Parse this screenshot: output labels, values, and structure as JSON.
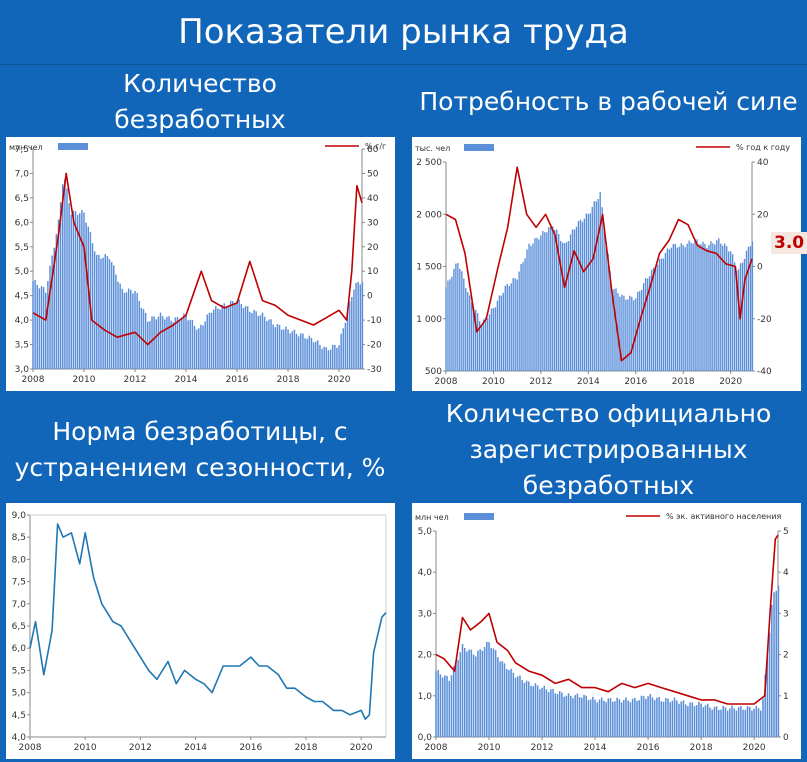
{
  "page": {
    "title": "Показатели рынка труда",
    "panels": [
      {
        "title_lines": [
          "Количество",
          "безработных"
        ]
      },
      {
        "title_lines": [
          "Потребность в рабочей силе"
        ]
      },
      {
        "title_lines": [
          "Норма безработицы, с",
          "устранением сезонности, %"
        ]
      },
      {
        "title_lines": [
          "Количество официально",
          "зарегистрированных",
          "безработных"
        ]
      }
    ],
    "annotation": "3.0"
  },
  "colors": {
    "bar": "#5b8fd9",
    "line_red": "#c00000",
    "line_blue": "#1f77b4",
    "axis": "#888888",
    "text": "#333333"
  },
  "chart_data": [
    {
      "type": "bar+line",
      "legend": {
        "bar_label": "млн чел",
        "line_label": "% г/г"
      },
      "x_ticks": [
        "2008",
        "2010",
        "2012",
        "2014",
        "2016",
        "2018",
        "2020"
      ],
      "x_range": [
        2008,
        2020.9
      ],
      "y_left": {
        "range": [
          3.0,
          7.5
        ],
        "ticks": [
          "3,0",
          "3,5",
          "4,0",
          "4,5",
          "5,0",
          "5,5",
          "6,0",
          "6,5",
          "7,0",
          "7,5"
        ]
      },
      "y_right": {
        "range": [
          -30,
          60
        ],
        "ticks": [
          "-30",
          "-20",
          "-10",
          "0",
          "10",
          "20",
          "30",
          "40",
          "50",
          "60"
        ]
      },
      "bars": {
        "x": [
          2008.0,
          2008.5,
          2009.0,
          2009.2,
          2009.5,
          2010.0,
          2010.5,
          2011.0,
          2011.5,
          2012.0,
          2012.5,
          2013.0,
          2013.5,
          2014.0,
          2014.5,
          2015.0,
          2015.5,
          2016.0,
          2016.5,
          2017.0,
          2017.5,
          2018.0,
          2018.5,
          2019.0,
          2019.5,
          2020.0,
          2020.3,
          2020.6,
          2020.9
        ],
        "y": [
          4.8,
          4.6,
          6.0,
          7.0,
          6.2,
          6.2,
          5.3,
          5.3,
          4.6,
          4.6,
          4.0,
          4.1,
          4.0,
          4.1,
          3.8,
          4.2,
          4.3,
          4.4,
          4.2,
          4.1,
          3.9,
          3.8,
          3.7,
          3.6,
          3.4,
          3.5,
          4.1,
          4.7,
          4.8
        ]
      },
      "line": {
        "x": [
          2008.0,
          2008.5,
          2009.0,
          2009.3,
          2009.6,
          2010.0,
          2010.3,
          2010.8,
          2011.3,
          2012.0,
          2012.5,
          2013.0,
          2013.5,
          2014.0,
          2014.6,
          2015.0,
          2015.5,
          2016.0,
          2016.5,
          2017.0,
          2017.5,
          2018.0,
          2018.5,
          2019.0,
          2019.5,
          2020.0,
          2020.3,
          2020.5,
          2020.7,
          2020.9
        ],
        "y": [
          -7,
          -10,
          25,
          50,
          30,
          20,
          -10,
          -14,
          -17,
          -15,
          -20,
          -15,
          -12,
          -8,
          10,
          -2,
          -5,
          -3,
          14,
          -2,
          -4,
          -8,
          -10,
          -12,
          -9,
          -6,
          -10,
          10,
          45,
          38
        ]
      }
    },
    {
      "type": "bar+line",
      "legend": {
        "bar_label": "тыс. чел",
        "line_label": "% год к году"
      },
      "x_ticks": [
        "2008",
        "2010",
        "2012",
        "2014",
        "2016",
        "2018",
        "2020"
      ],
      "x_range": [
        2008,
        2020.9
      ],
      "y_left": {
        "range": [
          500,
          2500
        ],
        "ticks": [
          "500",
          "1 000",
          "1 500",
          "2 000",
          "2 500"
        ]
      },
      "y_right": {
        "range": [
          -40,
          40
        ],
        "ticks": [
          "-40",
          "-20",
          "0",
          "20",
          "40"
        ]
      },
      "bars": {
        "x": [
          2008.0,
          2008.5,
          2009.0,
          2009.5,
          2010.0,
          2010.5,
          2011.0,
          2011.5,
          2012.0,
          2012.5,
          2013.0,
          2013.5,
          2014.0,
          2014.5,
          2015.0,
          2015.5,
          2016.0,
          2016.5,
          2017.0,
          2017.5,
          2018.0,
          2018.5,
          2019.0,
          2019.5,
          2020.0,
          2020.3,
          2020.6,
          2020.9
        ],
        "y": [
          1300,
          1550,
          1200,
          950,
          1100,
          1300,
          1400,
          1700,
          1800,
          1900,
          1700,
          1900,
          2000,
          2200,
          1300,
          1200,
          1200,
          1400,
          1550,
          1700,
          1700,
          1750,
          1700,
          1750,
          1650,
          1450,
          1600,
          1750
        ]
      },
      "line": {
        "x": [
          2008.0,
          2008.4,
          2008.8,
          2009.3,
          2009.7,
          2010.2,
          2010.6,
          2011.0,
          2011.4,
          2011.8,
          2012.2,
          2012.6,
          2013.0,
          2013.4,
          2013.8,
          2014.2,
          2014.6,
          2015.0,
          2015.4,
          2015.8,
          2016.2,
          2016.6,
          2017.0,
          2017.4,
          2017.8,
          2018.2,
          2018.6,
          2019.0,
          2019.4,
          2019.8,
          2020.2,
          2020.4,
          2020.6,
          2020.9
        ],
        "y": [
          20,
          18,
          5,
          -25,
          -20,
          0,
          15,
          38,
          20,
          15,
          20,
          12,
          -8,
          6,
          -2,
          3,
          20,
          -10,
          -36,
          -33,
          -20,
          -8,
          5,
          10,
          18,
          16,
          8,
          6,
          5,
          1,
          0,
          -20,
          -5,
          3
        ]
      }
    },
    {
      "type": "line",
      "x_ticks": [
        "2008",
        "2010",
        "2012",
        "2014",
        "2016",
        "2018",
        "2020"
      ],
      "x_range": [
        2008,
        2020.9
      ],
      "y_left": {
        "range": [
          4.0,
          9.0
        ],
        "ticks": [
          "4,0",
          "4,5",
          "5,0",
          "5,5",
          "6,0",
          "6,5",
          "7,0",
          "7,5",
          "8,0",
          "8,5",
          "9,0"
        ]
      },
      "line": {
        "x": [
          2008.0,
          2008.2,
          2008.5,
          2008.8,
          2009.0,
          2009.2,
          2009.5,
          2009.8,
          2010.0,
          2010.3,
          2010.6,
          2011.0,
          2011.3,
          2011.6,
          2012.0,
          2012.3,
          2012.6,
          2013.0,
          2013.3,
          2013.6,
          2014.0,
          2014.3,
          2014.6,
          2015.0,
          2015.3,
          2015.6,
          2016.0,
          2016.3,
          2016.6,
          2017.0,
          2017.3,
          2017.6,
          2018.0,
          2018.3,
          2018.6,
          2019.0,
          2019.3,
          2019.6,
          2020.0,
          2020.15,
          2020.3,
          2020.45,
          2020.6,
          2020.75,
          2020.9
        ],
        "y": [
          6.0,
          6.6,
          5.4,
          6.4,
          8.8,
          8.5,
          8.6,
          7.9,
          8.6,
          7.6,
          7.0,
          6.6,
          6.5,
          6.2,
          5.8,
          5.5,
          5.3,
          5.7,
          5.2,
          5.5,
          5.3,
          5.2,
          5.0,
          5.6,
          5.6,
          5.6,
          5.8,
          5.6,
          5.6,
          5.4,
          5.1,
          5.1,
          4.9,
          4.8,
          4.8,
          4.6,
          4.6,
          4.5,
          4.6,
          4.4,
          4.5,
          5.9,
          6.3,
          6.7,
          6.8
        ]
      }
    },
    {
      "type": "bar+line",
      "legend": {
        "bar_label": "млн чел",
        "line_label": "%  эк. активного населения"
      },
      "x_ticks": [
        "2008",
        "2010",
        "2012",
        "2014",
        "2016",
        "2018",
        "2020"
      ],
      "x_range": [
        2008,
        2020.9
      ],
      "y_left": {
        "range": [
          0.0,
          5.0
        ],
        "ticks": [
          "0,0",
          "1,0",
          "2,0",
          "3,0",
          "4,0",
          "5,0"
        ]
      },
      "y_right": {
        "range": [
          0,
          5
        ],
        "ticks": [
          "0",
          "1",
          "2",
          "3",
          "4",
          "5"
        ]
      },
      "bars": {
        "x": [
          2008.0,
          2008.5,
          2009.0,
          2009.5,
          2010.0,
          2010.5,
          2011.0,
          2011.5,
          2012.0,
          2012.5,
          2013.0,
          2013.5,
          2014.0,
          2014.5,
          2015.0,
          2015.5,
          2016.0,
          2016.5,
          2017.0,
          2017.5,
          2018.0,
          2018.5,
          2019.0,
          2019.5,
          2020.0,
          2020.3,
          2020.5,
          2020.7,
          2020.9
        ],
        "y": [
          1.6,
          1.4,
          2.2,
          2.0,
          2.3,
          1.8,
          1.5,
          1.3,
          1.2,
          1.1,
          1.0,
          1.0,
          0.9,
          0.9,
          0.9,
          0.9,
          1.0,
          0.9,
          0.9,
          0.8,
          0.8,
          0.7,
          0.7,
          0.7,
          0.7,
          0.7,
          2.0,
          3.4,
          3.7
        ]
      },
      "line": {
        "x": [
          2008.0,
          2008.3,
          2008.7,
          2009.0,
          2009.3,
          2009.7,
          2010.0,
          2010.3,
          2010.7,
          2011.0,
          2011.5,
          2012.0,
          2012.5,
          2013.0,
          2013.5,
          2014.0,
          2014.5,
          2015.0,
          2015.5,
          2016.0,
          2016.5,
          2017.0,
          2017.5,
          2018.0,
          2018.5,
          2019.0,
          2019.5,
          2020.0,
          2020.2,
          2020.4,
          2020.6,
          2020.8,
          2020.9
        ],
        "y": [
          2.0,
          1.9,
          1.6,
          2.9,
          2.6,
          2.8,
          3.0,
          2.3,
          2.1,
          1.8,
          1.6,
          1.5,
          1.3,
          1.4,
          1.2,
          1.2,
          1.1,
          1.3,
          1.2,
          1.3,
          1.2,
          1.1,
          1.0,
          0.9,
          0.9,
          0.8,
          0.8,
          0.8,
          0.9,
          1.0,
          3.0,
          4.8,
          4.9
        ]
      }
    }
  ]
}
